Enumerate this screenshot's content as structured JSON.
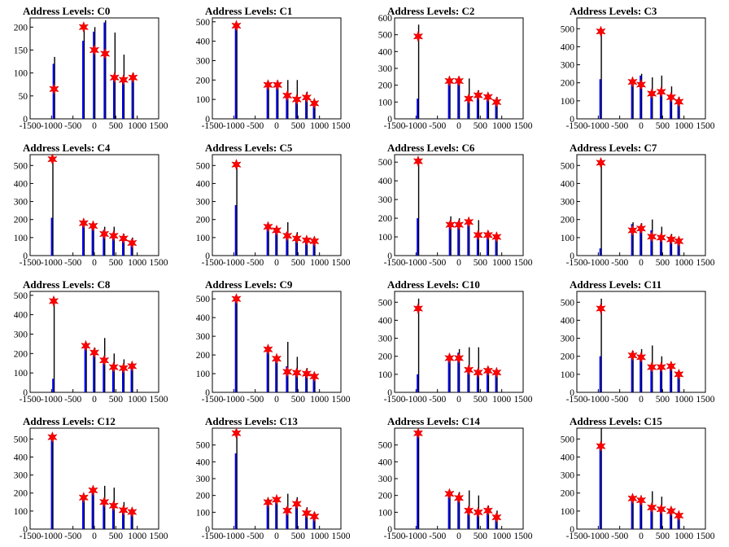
{
  "title_prefix": "Address Levels: ",
  "colors": {
    "bar_black": "#000000",
    "bar_blue": "#0000ff",
    "marker": "#ff0000"
  },
  "chart_data": [
    {
      "type": "bar",
      "title": "Address Levels: C0",
      "xlim": [
        -1500,
        1500
      ],
      "xticks": [
        -1500,
        -1000,
        -500,
        0,
        500,
        1000,
        1500
      ],
      "ylim": [
        0,
        220
      ],
      "yticks": [
        0,
        50,
        100,
        150,
        200
      ],
      "peaks": [
        {
          "x": -940,
          "black": 135,
          "blue": 120,
          "marker": 65
        },
        {
          "x": -250,
          "black": 205,
          "blue": 170,
          "marker": 200
        },
        {
          "x": 0,
          "black": 200,
          "blue": 190,
          "marker": 150
        },
        {
          "x": 250,
          "black": 215,
          "blue": 210,
          "marker": 142
        },
        {
          "x": 470,
          "black": 188,
          "blue": 95,
          "marker": 90
        },
        {
          "x": 680,
          "black": 140,
          "blue": 90,
          "marker": 85
        },
        {
          "x": 900,
          "black": 100,
          "blue": 95,
          "marker": 90
        }
      ]
    },
    {
      "type": "bar",
      "title": "Address Levels: C1",
      "xlim": [
        -1500,
        1500
      ],
      "xticks": [
        -1500,
        -1000,
        -500,
        0,
        500,
        1000,
        1500
      ],
      "ylim": [
        0,
        520
      ],
      "yticks": [
        0,
        100,
        200,
        300,
        400,
        500
      ],
      "peaks": [
        {
          "x": -940,
          "black": 485,
          "blue": 480,
          "marker": 480
        },
        {
          "x": -200,
          "black": 185,
          "blue": 180,
          "marker": 175
        },
        {
          "x": 20,
          "black": 195,
          "blue": 180,
          "marker": 175
        },
        {
          "x": 250,
          "black": 200,
          "blue": 120,
          "marker": 120
        },
        {
          "x": 470,
          "black": 200,
          "blue": 100,
          "marker": 100
        },
        {
          "x": 700,
          "black": 140,
          "blue": 110,
          "marker": 110
        },
        {
          "x": 880,
          "black": 90,
          "blue": 80,
          "marker": 80
        }
      ]
    },
    {
      "type": "bar",
      "title": "Address Levels: C2",
      "xlim": [
        -1500,
        1500
      ],
      "xticks": [
        -1500,
        -1000,
        -500,
        0,
        500,
        1000,
        1500
      ],
      "ylim": [
        0,
        600
      ],
      "yticks": [
        0,
        100,
        200,
        300,
        400,
        500,
        600
      ],
      "peaks": [
        {
          "x": -950,
          "black": 560,
          "blue": 120,
          "marker": 490
        },
        {
          "x": -220,
          "black": 240,
          "blue": 230,
          "marker": 225
        },
        {
          "x": 0,
          "black": 250,
          "blue": 240,
          "marker": 225
        },
        {
          "x": 230,
          "black": 240,
          "blue": 120,
          "marker": 120
        },
        {
          "x": 450,
          "black": 170,
          "blue": 140,
          "marker": 140
        },
        {
          "x": 680,
          "black": 150,
          "blue": 130,
          "marker": 130
        },
        {
          "x": 880,
          "black": 130,
          "blue": 100,
          "marker": 100
        }
      ]
    },
    {
      "type": "bar",
      "title": "Address Levels: C3",
      "xlim": [
        -1500,
        1500
      ],
      "xticks": [
        -1500,
        -1000,
        -500,
        0,
        500,
        1000,
        1500
      ],
      "ylim": [
        0,
        560
      ],
      "yticks": [
        0,
        100,
        200,
        300,
        400,
        500
      ],
      "peaks": [
        {
          "x": -940,
          "black": 500,
          "blue": 220,
          "marker": 485
        },
        {
          "x": -200,
          "black": 220,
          "blue": 210,
          "marker": 205
        },
        {
          "x": 0,
          "black": 250,
          "blue": 240,
          "marker": 190
        },
        {
          "x": 250,
          "black": 230,
          "blue": 140,
          "marker": 140
        },
        {
          "x": 470,
          "black": 240,
          "blue": 150,
          "marker": 150
        },
        {
          "x": 700,
          "black": 180,
          "blue": 130,
          "marker": 120
        },
        {
          "x": 880,
          "black": 120,
          "blue": 90,
          "marker": 95
        }
      ]
    },
    {
      "type": "bar",
      "title": "Address Levels: C4",
      "xlim": [
        -1500,
        1500
      ],
      "xticks": [
        -1500,
        -1000,
        -500,
        0,
        500,
        1000,
        1500
      ],
      "ylim": [
        0,
        560
      ],
      "yticks": [
        0,
        100,
        200,
        300,
        400,
        500
      ],
      "peaks": [
        {
          "x": -980,
          "black": 540,
          "blue": 210,
          "marker": 535
        },
        {
          "x": -250,
          "black": 190,
          "blue": 185,
          "marker": 180
        },
        {
          "x": -30,
          "black": 180,
          "blue": 170,
          "marker": 165
        },
        {
          "x": 230,
          "black": 160,
          "blue": 140,
          "marker": 120
        },
        {
          "x": 450,
          "black": 160,
          "blue": 110,
          "marker": 110
        },
        {
          "x": 680,
          "black": 120,
          "blue": 100,
          "marker": 95
        },
        {
          "x": 880,
          "black": 100,
          "blue": 70,
          "marker": 70
        }
      ]
    },
    {
      "type": "bar",
      "title": "Address Levels: C5",
      "xlim": [
        -1500,
        1500
      ],
      "xticks": [
        -1500,
        -1000,
        -500,
        0,
        500,
        1000,
        1500
      ],
      "ylim": [
        0,
        560
      ],
      "yticks": [
        0,
        100,
        200,
        300,
        400,
        500
      ],
      "peaks": [
        {
          "x": -940,
          "black": 510,
          "blue": 280,
          "marker": 505
        },
        {
          "x": -200,
          "black": 170,
          "blue": 160,
          "marker": 160
        },
        {
          "x": 0,
          "black": 160,
          "blue": 150,
          "marker": 140
        },
        {
          "x": 250,
          "black": 185,
          "blue": 130,
          "marker": 110
        },
        {
          "x": 470,
          "black": 130,
          "blue": 100,
          "marker": 95
        },
        {
          "x": 700,
          "black": 100,
          "blue": 90,
          "marker": 85
        },
        {
          "x": 880,
          "black": 100,
          "blue": 80,
          "marker": 80
        }
      ]
    },
    {
      "type": "bar",
      "title": "Address Levels: C6",
      "xlim": [
        -1500,
        1500
      ],
      "xticks": [
        -1500,
        -1000,
        -500,
        0,
        500,
        1000,
        1500
      ],
      "ylim": [
        0,
        540
      ],
      "yticks": [
        0,
        100,
        200,
        300,
        400,
        500
      ],
      "peaks": [
        {
          "x": -950,
          "black": 510,
          "blue": 200,
          "marker": 505
        },
        {
          "x": -200,
          "black": 210,
          "blue": 180,
          "marker": 165
        },
        {
          "x": 0,
          "black": 200,
          "blue": 180,
          "marker": 165
        },
        {
          "x": 230,
          "black": 190,
          "blue": 170,
          "marker": 180
        },
        {
          "x": 450,
          "black": 190,
          "blue": 120,
          "marker": 110
        },
        {
          "x": 680,
          "black": 130,
          "blue": 110,
          "marker": 110
        },
        {
          "x": 880,
          "black": 110,
          "blue": 100,
          "marker": 100
        }
      ]
    },
    {
      "type": "bar",
      "title": "Address Levels: C7",
      "xlim": [
        -1500,
        1500
      ],
      "xticks": [
        -1500,
        -1000,
        -500,
        0,
        500,
        1000,
        1500
      ],
      "ylim": [
        0,
        560
      ],
      "yticks": [
        0,
        100,
        200,
        300,
        400,
        500
      ],
      "peaks": [
        {
          "x": -940,
          "black": 520,
          "blue": 40,
          "marker": 515
        },
        {
          "x": -200,
          "black": 185,
          "blue": 175,
          "marker": 140
        },
        {
          "x": 0,
          "black": 180,
          "blue": 165,
          "marker": 150
        },
        {
          "x": 250,
          "black": 200,
          "blue": 140,
          "marker": 105
        },
        {
          "x": 470,
          "black": 160,
          "blue": 100,
          "marker": 100
        },
        {
          "x": 700,
          "black": 120,
          "blue": 90,
          "marker": 90
        },
        {
          "x": 880,
          "black": 100,
          "blue": 80,
          "marker": 80
        }
      ]
    },
    {
      "type": "bar",
      "title": "Address Levels: C8",
      "xlim": [
        -1500,
        1500
      ],
      "xticks": [
        -1500,
        -1000,
        -500,
        0,
        500,
        1000,
        1500
      ],
      "ylim": [
        0,
        520
      ],
      "yticks": [
        0,
        100,
        200,
        300,
        400,
        500
      ],
      "peaks": [
        {
          "x": -950,
          "black": 490,
          "blue": 70,
          "marker": 470
        },
        {
          "x": -200,
          "black": 250,
          "blue": 240,
          "marker": 240
        },
        {
          "x": 0,
          "black": 230,
          "blue": 210,
          "marker": 205
        },
        {
          "x": 230,
          "black": 280,
          "blue": 180,
          "marker": 165
        },
        {
          "x": 450,
          "black": 200,
          "blue": 130,
          "marker": 130
        },
        {
          "x": 680,
          "black": 170,
          "blue": 130,
          "marker": 125
        },
        {
          "x": 880,
          "black": 140,
          "blue": 130,
          "marker": 135
        }
      ]
    },
    {
      "type": "bar",
      "title": "Address Levels: C9",
      "xlim": [
        -1500,
        1500
      ],
      "xticks": [
        -1500,
        -1000,
        -500,
        0,
        500,
        1000,
        1500
      ],
      "ylim": [
        0,
        540
      ],
      "yticks": [
        0,
        100,
        200,
        300,
        400,
        500
      ],
      "peaks": [
        {
          "x": -940,
          "black": 505,
          "blue": 500,
          "marker": 500
        },
        {
          "x": -200,
          "black": 240,
          "blue": 230,
          "marker": 230
        },
        {
          "x": 0,
          "black": 200,
          "blue": 190,
          "marker": 180
        },
        {
          "x": 250,
          "black": 270,
          "blue": 140,
          "marker": 110
        },
        {
          "x": 470,
          "black": 190,
          "blue": 110,
          "marker": 105
        },
        {
          "x": 700,
          "black": 130,
          "blue": 100,
          "marker": 100
        },
        {
          "x": 880,
          "black": 100,
          "blue": 80,
          "marker": 85
        }
      ]
    },
    {
      "type": "bar",
      "title": "Address Levels: C10",
      "xlim": [
        -1500,
        1500
      ],
      "xticks": [
        -1500,
        -1000,
        -500,
        0,
        500,
        1000,
        1500
      ],
      "ylim": [
        0,
        560
      ],
      "yticks": [
        0,
        100,
        200,
        300,
        400,
        500
      ],
      "peaks": [
        {
          "x": -950,
          "black": 520,
          "blue": 100,
          "marker": 465
        },
        {
          "x": -220,
          "black": 210,
          "blue": 200,
          "marker": 190
        },
        {
          "x": 0,
          "black": 240,
          "blue": 220,
          "marker": 190
        },
        {
          "x": 230,
          "black": 250,
          "blue": 130,
          "marker": 125
        },
        {
          "x": 450,
          "black": 250,
          "blue": 120,
          "marker": 110
        },
        {
          "x": 680,
          "black": 140,
          "blue": 120,
          "marker": 120
        },
        {
          "x": 880,
          "black": 120,
          "blue": 110,
          "marker": 110
        }
      ]
    },
    {
      "type": "bar",
      "title": "Address Levels: C11",
      "xlim": [
        -1500,
        1500
      ],
      "xticks": [
        -1500,
        -1000,
        -500,
        0,
        500,
        1000,
        1500
      ],
      "ylim": [
        0,
        560
      ],
      "yticks": [
        0,
        100,
        200,
        300,
        400,
        500
      ],
      "peaks": [
        {
          "x": -940,
          "black": 520,
          "blue": 200,
          "marker": 465
        },
        {
          "x": -200,
          "black": 230,
          "blue": 210,
          "marker": 205
        },
        {
          "x": 0,
          "black": 240,
          "blue": 200,
          "marker": 195
        },
        {
          "x": 250,
          "black": 260,
          "blue": 150,
          "marker": 140
        },
        {
          "x": 470,
          "black": 200,
          "blue": 140,
          "marker": 140
        },
        {
          "x": 700,
          "black": 160,
          "blue": 140,
          "marker": 145
        },
        {
          "x": 880,
          "black": 120,
          "blue": 100,
          "marker": 100
        }
      ]
    },
    {
      "type": "bar",
      "title": "Address Levels: C12",
      "xlim": [
        -1500,
        1500
      ],
      "xticks": [
        -1500,
        -1000,
        -500,
        0,
        500,
        1000,
        1500
      ],
      "ylim": [
        0,
        560
      ],
      "yticks": [
        0,
        100,
        200,
        300,
        400,
        500
      ],
      "peaks": [
        {
          "x": -980,
          "black": 520,
          "blue": 510,
          "marker": 510
        },
        {
          "x": -250,
          "black": 190,
          "blue": 180,
          "marker": 175
        },
        {
          "x": -30,
          "black": 220,
          "blue": 210,
          "marker": 215
        },
        {
          "x": 230,
          "black": 240,
          "blue": 150,
          "marker": 150
        },
        {
          "x": 450,
          "black": 230,
          "blue": 120,
          "marker": 130
        },
        {
          "x": 680,
          "black": 150,
          "blue": 110,
          "marker": 105
        },
        {
          "x": 880,
          "black": 110,
          "blue": 90,
          "marker": 95
        }
      ]
    },
    {
      "type": "bar",
      "title": "Address Levels: C13",
      "xlim": [
        -1500,
        1500
      ],
      "xticks": [
        -1500,
        -1000,
        -500,
        0,
        500,
        1000,
        1500
      ],
      "ylim": [
        0,
        600
      ],
      "yticks": [
        0,
        100,
        200,
        300,
        400,
        500
      ],
      "peaks": [
        {
          "x": -940,
          "black": 590,
          "blue": 450,
          "marker": 570
        },
        {
          "x": -200,
          "black": 180,
          "blue": 170,
          "marker": 160
        },
        {
          "x": 0,
          "black": 190,
          "blue": 180,
          "marker": 175
        },
        {
          "x": 250,
          "black": 210,
          "blue": 130,
          "marker": 110
        },
        {
          "x": 470,
          "black": 190,
          "blue": 140,
          "marker": 150
        },
        {
          "x": 700,
          "black": 130,
          "blue": 100,
          "marker": 95
        },
        {
          "x": 880,
          "black": 100,
          "blue": 70,
          "marker": 75
        }
      ]
    },
    {
      "type": "bar",
      "title": "Address Levels: C14",
      "xlim": [
        -1500,
        1500
      ],
      "xticks": [
        -1500,
        -1000,
        -500,
        0,
        500,
        1000,
        1500
      ],
      "ylim": [
        0,
        600
      ],
      "yticks": [
        0,
        100,
        200,
        300,
        400,
        500
      ],
      "peaks": [
        {
          "x": -950,
          "black": 580,
          "blue": 570,
          "marker": 570
        },
        {
          "x": -220,
          "black": 220,
          "blue": 210,
          "marker": 210
        },
        {
          "x": 0,
          "black": 220,
          "blue": 200,
          "marker": 185
        },
        {
          "x": 230,
          "black": 230,
          "blue": 120,
          "marker": 110
        },
        {
          "x": 450,
          "black": 200,
          "blue": 110,
          "marker": 100
        },
        {
          "x": 680,
          "black": 140,
          "blue": 100,
          "marker": 110
        },
        {
          "x": 880,
          "black": 110,
          "blue": 70,
          "marker": 70
        }
      ]
    },
    {
      "type": "bar",
      "title": "Address Levels: C15",
      "xlim": [
        -1500,
        1500
      ],
      "xticks": [
        -1500,
        -1000,
        -500,
        0,
        500,
        1000,
        1500
      ],
      "ylim": [
        0,
        560
      ],
      "yticks": [
        0,
        100,
        200,
        300,
        400,
        500
      ],
      "peaks": [
        {
          "x": -940,
          "black": 560,
          "blue": 460,
          "marker": 460
        },
        {
          "x": -200,
          "black": 180,
          "blue": 170,
          "marker": 170
        },
        {
          "x": 0,
          "black": 170,
          "blue": 160,
          "marker": 160
        },
        {
          "x": 250,
          "black": 210,
          "blue": 120,
          "marker": 120
        },
        {
          "x": 470,
          "black": 180,
          "blue": 110,
          "marker": 110
        },
        {
          "x": 700,
          "black": 120,
          "blue": 100,
          "marker": 100
        },
        {
          "x": 880,
          "black": 90,
          "blue": 70,
          "marker": 75
        }
      ]
    }
  ]
}
